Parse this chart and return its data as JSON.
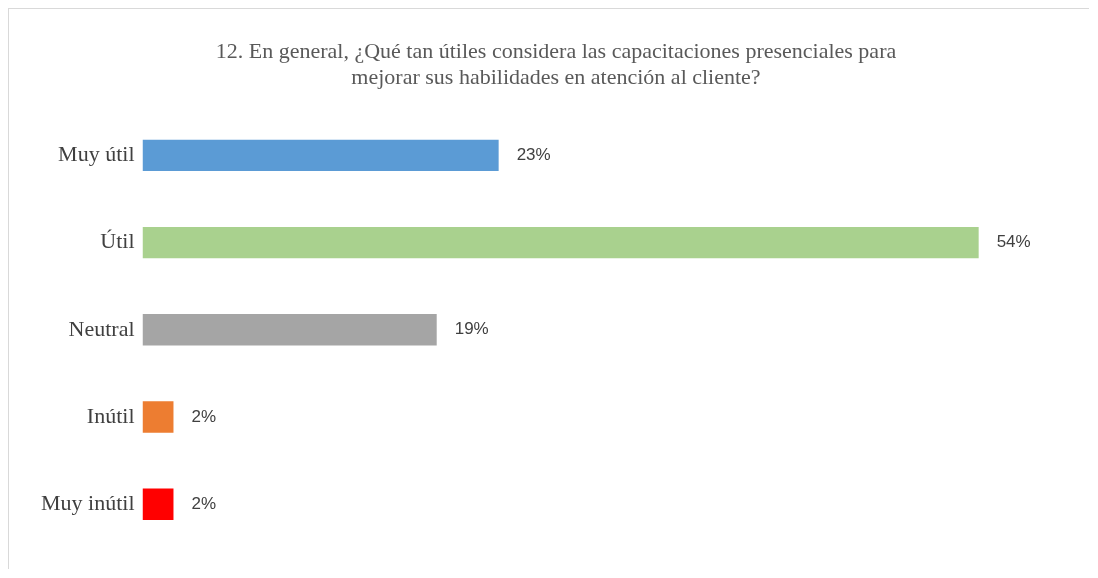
{
  "chart_data": {
    "type": "bar",
    "orientation": "horizontal",
    "title": "12. En general, ¿Qué tan útiles considera las capacitaciones presenciales para mejorar sus habilidades en atención al cliente?",
    "categories": [
      "Muy útil",
      "Útil",
      "Neutral",
      "Inútil",
      "Muy inútil"
    ],
    "values": [
      23,
      54,
      19,
      2,
      2
    ],
    "colors": [
      "#5b9bd5",
      "#a9d18e",
      "#a5a5a5",
      "#ed7d31",
      "#ff0000"
    ],
    "value_labels": [
      "23%",
      "54%",
      "19%",
      "2%",
      "2%"
    ],
    "legend": false
  }
}
